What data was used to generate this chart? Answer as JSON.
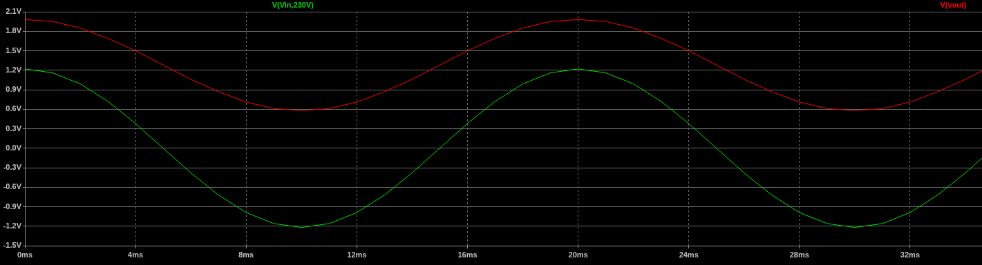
{
  "chart_data": {
    "type": "line",
    "x": [
      0,
      1,
      2,
      3,
      4,
      5,
      6,
      7,
      8,
      9,
      10,
      11,
      12,
      13,
      14,
      15,
      16,
      17,
      18,
      19,
      20,
      21,
      22,
      23,
      24,
      25,
      26,
      27,
      28,
      29,
      30,
      31,
      32,
      33,
      34,
      34.6
    ],
    "series": [
      {
        "name": "V(Vin,230V)",
        "color": "#00e000",
        "values": [
          1.22,
          1.16,
          0.99,
          0.72,
          0.38,
          0,
          -0.38,
          -0.72,
          -0.99,
          -1.16,
          -1.22,
          -1.16,
          -0.99,
          -0.72,
          -0.38,
          0,
          0.38,
          0.72,
          0.99,
          1.16,
          1.22,
          1.16,
          0.99,
          0.72,
          0.38,
          0,
          -0.38,
          -0.72,
          -0.99,
          -1.16,
          -1.22,
          -1.16,
          -0.99,
          -0.72,
          -0.38,
          -0.15
        ]
      },
      {
        "name": "V(vout)",
        "color": "#ff0000",
        "values": [
          1.98,
          1.95,
          1.85,
          1.69,
          1.5,
          1.28,
          1.06,
          0.87,
          0.71,
          0.61,
          0.58,
          0.61,
          0.71,
          0.87,
          1.06,
          1.28,
          1.5,
          1.69,
          1.85,
          1.95,
          1.98,
          1.95,
          1.85,
          1.69,
          1.5,
          1.28,
          1.06,
          0.87,
          0.71,
          0.61,
          0.58,
          0.61,
          0.71,
          0.87,
          1.06,
          1.19
        ]
      }
    ],
    "xlim": [
      0,
      34.6
    ],
    "xticks": [
      {
        "value": 0,
        "label": "0ms"
      },
      {
        "value": 4,
        "label": "4ms"
      },
      {
        "value": 8,
        "label": "8ms"
      },
      {
        "value": 12,
        "label": "12ms"
      },
      {
        "value": 16,
        "label": "16ms"
      },
      {
        "value": 20,
        "label": "20ms"
      },
      {
        "value": 24,
        "label": "24ms"
      },
      {
        "value": 28,
        "label": "28ms"
      },
      {
        "value": 32,
        "label": "32ms"
      }
    ],
    "ylim": [
      -1.5,
      2.1
    ],
    "yticks": [
      {
        "value": -1.5,
        "label": "-1.5V"
      },
      {
        "value": -1.2,
        "label": "-1.2V"
      },
      {
        "value": -0.9,
        "label": "-0.9V"
      },
      {
        "value": -0.6,
        "label": "-0.6V"
      },
      {
        "value": -0.3,
        "label": "-0.3V"
      },
      {
        "value": 0,
        "label": "0.0V"
      },
      {
        "value": 0.3,
        "label": "0.3V"
      },
      {
        "value": 0.6,
        "label": "0.6V"
      },
      {
        "value": 0.9,
        "label": "0.9V"
      },
      {
        "value": 1.2,
        "label": "1.2V"
      },
      {
        "value": 1.5,
        "label": "1.5V"
      },
      {
        "value": 1.8,
        "label": "1.8V"
      },
      {
        "value": 2.1,
        "label": "2.1V"
      }
    ],
    "grid": true,
    "legend": "top",
    "marker": "none",
    "line_style": "solid"
  }
}
